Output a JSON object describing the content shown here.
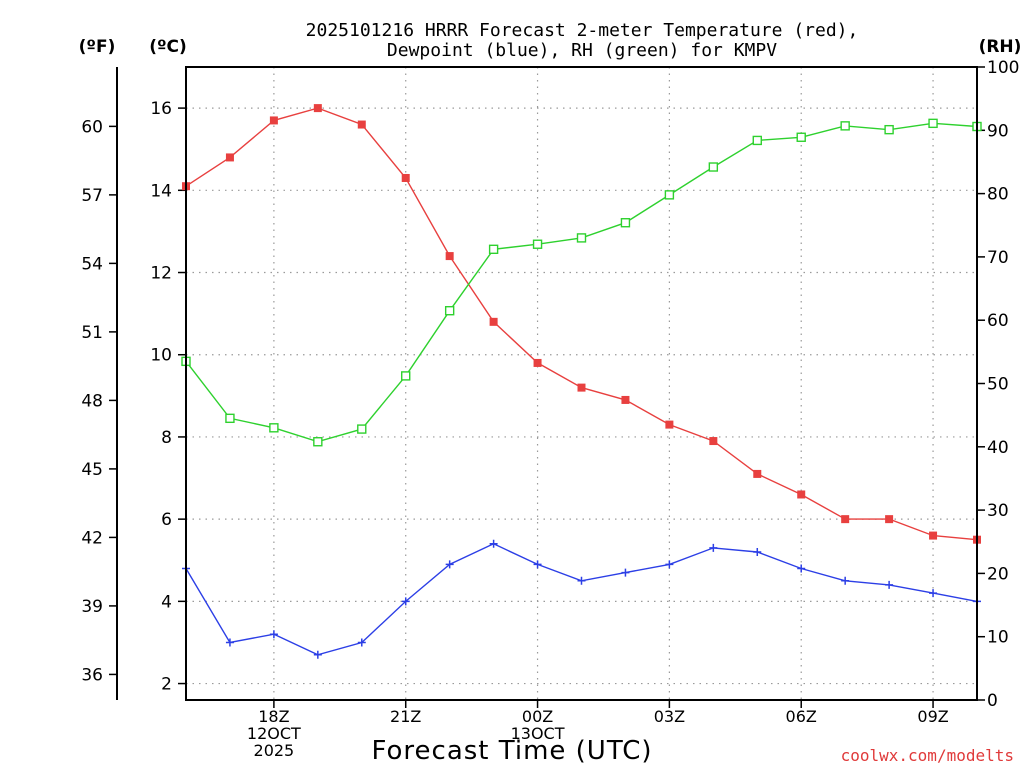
{
  "chart_data": {
    "type": "line",
    "title_lines": [
      "2025101216 HRRR Forecast 2-meter Temperature (red),",
      "Dewpoint (blue), RH (green) for KMPV"
    ],
    "xlabel": "Forecast Time (UTC)",
    "credit": "coolwx.com/modelts",
    "left_unit_f": "(ºF)",
    "left_unit_c": "(ºC)",
    "right_unit": "(RH)",
    "x_range_hours": [
      0,
      18
    ],
    "x_ticks": [
      {
        "hour": 2,
        "lines": [
          "18Z",
          "12OCT",
          "2025"
        ]
      },
      {
        "hour": 5,
        "lines": [
          "21Z"
        ]
      },
      {
        "hour": 8,
        "lines": [
          "00Z",
          "13OCT"
        ]
      },
      {
        "hour": 11,
        "lines": [
          "03Z"
        ]
      },
      {
        "hour": 14,
        "lines": [
          "06Z"
        ]
      },
      {
        "hour": 17,
        "lines": [
          "09Z"
        ]
      }
    ],
    "celsius_axis": {
      "range": [
        1.6,
        17.0
      ],
      "ticks": [
        2,
        4,
        6,
        8,
        10,
        12,
        14,
        16
      ]
    },
    "fahrenheit_ticks": [
      36,
      39,
      42,
      45,
      48,
      51,
      54,
      57,
      60
    ],
    "rh_axis": {
      "range": [
        0,
        100
      ],
      "ticks": [
        0,
        10,
        20,
        30,
        40,
        50,
        60,
        70,
        80,
        90,
        100
      ]
    },
    "grid": true,
    "series": [
      {
        "name": "2-meter Temperature",
        "axis": "celsius",
        "color": "#e8403f",
        "marker": "filled-square",
        "x": [
          0,
          1,
          2,
          3,
          4,
          5,
          6,
          7,
          8,
          9,
          10,
          11,
          12,
          13,
          14,
          15,
          16,
          17,
          18
        ],
        "values": [
          14.1,
          14.8,
          15.7,
          16.0,
          15.6,
          14.3,
          12.4,
          10.8,
          9.8,
          9.2,
          8.9,
          8.3,
          7.9,
          7.1,
          6.6,
          6.0,
          6.0,
          5.6,
          5.5
        ]
      },
      {
        "name": "Dewpoint",
        "axis": "celsius",
        "color": "#2c3fe6",
        "marker": "plus",
        "x": [
          0,
          1,
          2,
          3,
          4,
          5,
          6,
          7,
          8,
          9,
          10,
          11,
          12,
          13,
          14,
          15,
          16,
          17,
          18
        ],
        "values": [
          4.8,
          3.0,
          3.2,
          2.7,
          3.0,
          4.0,
          4.9,
          5.4,
          4.9,
          4.5,
          4.7,
          4.9,
          5.3,
          5.2,
          4.8,
          4.5,
          4.4,
          4.2,
          4.0
        ]
      },
      {
        "name": "RH",
        "axis": "rh",
        "color": "#2ed12e",
        "marker": "open-square",
        "x": [
          0,
          1,
          2,
          3,
          4,
          5,
          6,
          7,
          8,
          9,
          10,
          11,
          12,
          13,
          14,
          15,
          16,
          17,
          18
        ],
        "values": [
          53.5,
          44.5,
          43.0,
          40.8,
          42.8,
          51.2,
          61.5,
          71.2,
          72.0,
          73.0,
          75.4,
          79.8,
          84.2,
          88.4,
          88.9,
          90.7,
          90.1,
          91.1,
          90.6
        ]
      }
    ]
  }
}
